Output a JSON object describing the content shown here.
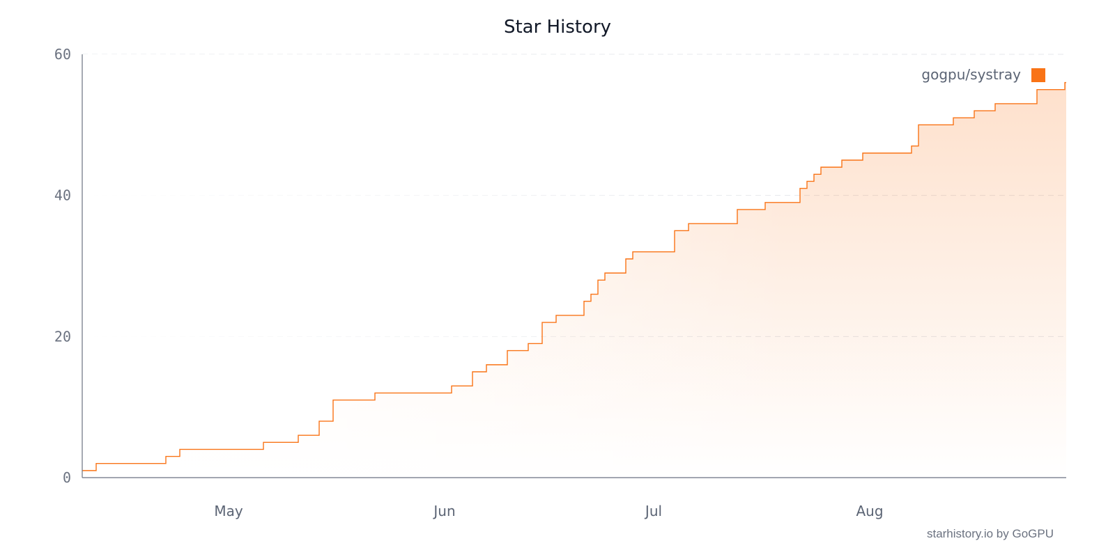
{
  "chart_data": {
    "type": "line",
    "title": "Star History",
    "xlabel": "",
    "ylabel": "",
    "ylim": [
      0,
      60
    ],
    "yticks": [
      "0",
      "20",
      "40",
      "60"
    ],
    "xlim": [
      "2025-04-10",
      "2025-08-29"
    ],
    "xticks": [
      {
        "date": "2025-05-01",
        "label": "May"
      },
      {
        "date": "2025-06-01",
        "label": "Jun"
      },
      {
        "date": "2025-07-01",
        "label": "Jul"
      },
      {
        "date": "2025-08-01",
        "label": "Aug"
      }
    ],
    "grid": true,
    "legend_position": "top-right",
    "series": [
      {
        "name": "gogpu/systray",
        "color": "#f97316",
        "step": true,
        "points": [
          [
            "2025-04-10",
            1
          ],
          [
            "2025-04-12",
            2
          ],
          [
            "2025-04-22",
            3
          ],
          [
            "2025-04-24",
            4
          ],
          [
            "2025-05-06",
            5
          ],
          [
            "2025-05-11",
            6
          ],
          [
            "2025-05-14",
            8
          ],
          [
            "2025-05-16",
            11
          ],
          [
            "2025-05-22",
            12
          ],
          [
            "2025-06-02",
            13
          ],
          [
            "2025-06-05",
            15
          ],
          [
            "2025-06-07",
            16
          ],
          [
            "2025-06-10",
            18
          ],
          [
            "2025-06-13",
            19
          ],
          [
            "2025-06-15",
            22
          ],
          [
            "2025-06-17",
            23
          ],
          [
            "2025-06-21",
            25
          ],
          [
            "2025-06-22",
            26
          ],
          [
            "2025-06-23",
            28
          ],
          [
            "2025-06-24",
            29
          ],
          [
            "2025-06-27",
            31
          ],
          [
            "2025-06-28",
            32
          ],
          [
            "2025-07-04",
            35
          ],
          [
            "2025-07-06",
            36
          ],
          [
            "2025-07-13",
            38
          ],
          [
            "2025-07-17",
            39
          ],
          [
            "2025-07-22",
            41
          ],
          [
            "2025-07-23",
            42
          ],
          [
            "2025-07-24",
            43
          ],
          [
            "2025-07-25",
            44
          ],
          [
            "2025-07-28",
            45
          ],
          [
            "2025-07-31",
            46
          ],
          [
            "2025-08-07",
            47
          ],
          [
            "2025-08-08",
            50
          ],
          [
            "2025-08-13",
            51
          ],
          [
            "2025-08-16",
            52
          ],
          [
            "2025-08-19",
            53
          ],
          [
            "2025-08-25",
            55
          ],
          [
            "2025-08-29",
            56
          ]
        ]
      }
    ]
  },
  "footer": {
    "credit": "starhistory.io by GoGPU"
  }
}
